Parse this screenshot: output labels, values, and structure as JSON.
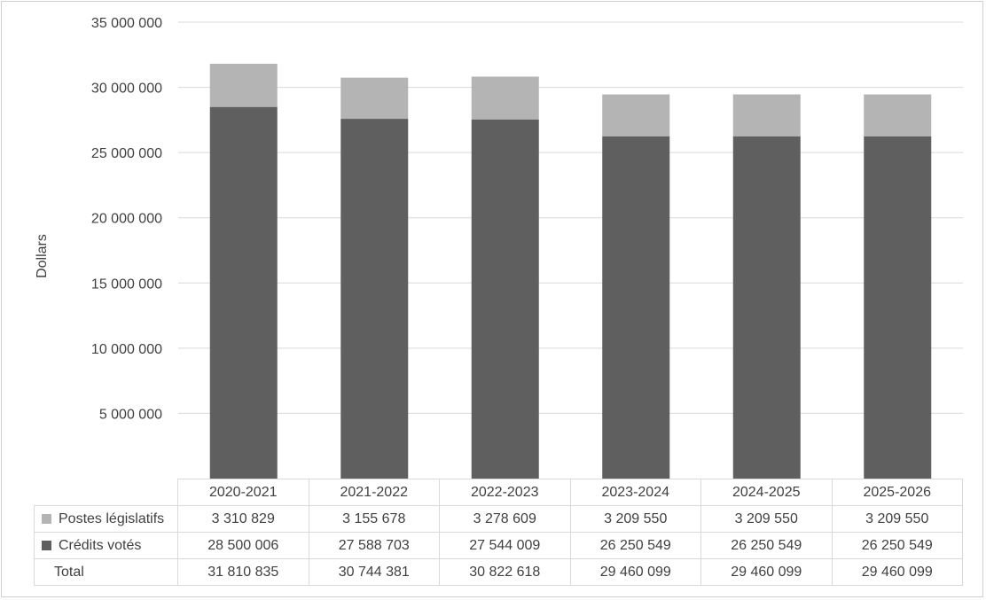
{
  "chart_data": {
    "type": "bar",
    "stacked": true,
    "ylabel": "Dollars",
    "ylim": [
      0,
      35000000
    ],
    "ytick_step": 5000000,
    "ytick_labels": [
      "",
      "5 000 000",
      "10 000 000",
      "15 000 000",
      "20 000 000",
      "25 000 000",
      "30 000 000",
      "35 000 000"
    ],
    "grid": true,
    "legend": "in data table",
    "categories": [
      "2020-2021",
      "2021-2022",
      "2022-2023",
      "2023-2024",
      "2024-2025",
      "2025-2026"
    ],
    "series": [
      {
        "name": "Crédits votés",
        "color": "#5f5f5f",
        "values": [
          28500006,
          27588703,
          27544009,
          26250549,
          26250549,
          26250549
        ]
      },
      {
        "name": "Postes législatifs",
        "color": "#b4b4b4",
        "values": [
          3310829,
          3155678,
          3278609,
          3209550,
          3209550,
          3209550
        ]
      }
    ],
    "table": {
      "rows": [
        {
          "label": "Postes législatifs",
          "key_color": "#b4b4b4",
          "cells": [
            "3 310 829",
            "3 155 678",
            "3 278 609",
            "3 209 550",
            "3 209 550",
            "3 209 550"
          ]
        },
        {
          "label": "Crédits votés",
          "key_color": "#5f5f5f",
          "cells": [
            "28 500 006",
            "27 588 703",
            "27 544 009",
            "26 250 549",
            "26 250 549",
            "26 250 549"
          ]
        },
        {
          "label": "Total",
          "key_color": "",
          "cells": [
            "31 810 835",
            "30 744 381",
            "30 822 618",
            "29 460 099",
            "29 460 099",
            "29 460 099"
          ]
        }
      ]
    }
  }
}
